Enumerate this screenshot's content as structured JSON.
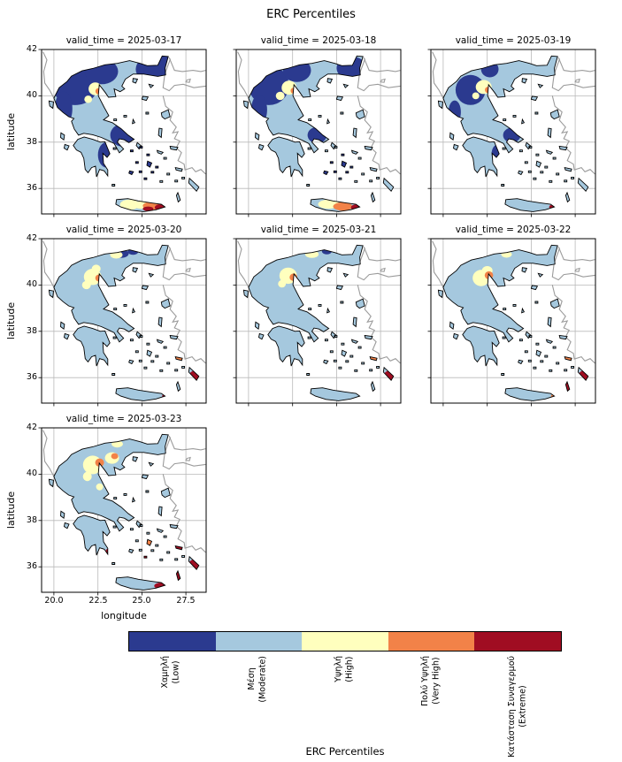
{
  "figure": {
    "title": "ERC Percentiles"
  },
  "axes": {
    "xlabel": "longitude",
    "ylabel": "latitude"
  },
  "colorbar": {
    "title": "ERC Percentiles"
  },
  "chart_data": {
    "type": "heatmap",
    "title": "ERC Percentiles",
    "facet_variable": "valid_time",
    "xlabel": "longitude",
    "ylabel": "latitude",
    "xlim": [
      19.3,
      28.65
    ],
    "ylim": [
      34.9,
      42.0
    ],
    "xticks": [
      "20.0",
      "22.5",
      "25.0",
      "27.5"
    ],
    "xtick_values": [
      20.0,
      22.5,
      25.0,
      27.5
    ],
    "ytick_values": [
      36,
      38,
      40,
      42
    ],
    "grid": true,
    "region": "Greece",
    "legend": {
      "title": "ERC Percentiles",
      "position": "bottom",
      "entries": [
        {
          "key": "low",
          "label_el": "Χαμηλή",
          "label_en": "(Low)",
          "color": "#2b3a8f"
        },
        {
          "key": "moderate",
          "label_el": "Μέση",
          "label_en": "(Moderate)",
          "color": "#a5c8de"
        },
        {
          "key": "high",
          "label_el": "Υψηλή",
          "label_en": "(High)",
          "color": "#ffffbe"
        },
        {
          "key": "very_high",
          "label_el": "Πολύ Υψηλή",
          "label_en": "(Very High)",
          "color": "#f28248"
        },
        {
          "key": "extreme",
          "label_el": "Κατάσταση Συναγερμού",
          "label_en": "(Extreme)",
          "color": "#a00d22"
        }
      ]
    },
    "base_category": "moderate",
    "panels": [
      {
        "title": "valid_time = 2025-03-17",
        "valid_time": "2025-03-17",
        "patches": {
          "low": [
            [
              21.2,
              40.55,
              1.35,
              0.95
            ],
            [
              22.7,
              41.05,
              0.95,
              0.55
            ],
            [
              25.7,
              41.15,
              1.05,
              0.6
            ],
            [
              20.55,
              39.45,
              0.5,
              0.75
            ],
            [
              23.95,
              38.3,
              0.75,
              0.5
            ],
            [
              23.0,
              37.45,
              0.5,
              0.55
            ],
            [
              26.3,
              41.45,
              0.45,
              0.45
            ],
            [
              25.0,
              37.0,
              1.2,
              0.8
            ]
          ],
          "high": [
            [
              22.35,
              40.3,
              0.38,
              0.28
            ],
            [
              21.95,
              39.85,
              0.22,
              0.16
            ],
            [
              24.3,
              35.3,
              0.55,
              0.22
            ],
            [
              24.95,
              35.28,
              0.45,
              0.16
            ]
          ],
          "very_high": [
            [
              22.52,
              40.2,
              0.16,
              0.13
            ],
            [
              25.55,
              35.25,
              0.5,
              0.17
            ]
          ],
          "extreme": [
            [
              26.05,
              35.18,
              0.32,
              0.14
            ],
            [
              25.35,
              35.12,
              0.3,
              0.1
            ]
          ]
        }
      },
      {
        "title": "valid_time = 2025-03-18",
        "valid_time": "2025-03-18",
        "patches": {
          "low": [
            [
              21.15,
              40.45,
              1.15,
              0.85
            ],
            [
              22.75,
              41.1,
              0.8,
              0.5
            ],
            [
              25.85,
              41.2,
              0.85,
              0.5
            ],
            [
              20.6,
              39.4,
              0.45,
              0.65
            ],
            [
              23.9,
              38.3,
              0.55,
              0.35
            ],
            [
              25.0,
              37.0,
              0.9,
              0.6
            ]
          ],
          "high": [
            [
              22.3,
              40.35,
              0.42,
              0.3
            ],
            [
              21.8,
              40.0,
              0.25,
              0.18
            ],
            [
              24.55,
              35.32,
              0.6,
              0.2
            ]
          ],
          "very_high": [
            [
              22.55,
              40.22,
              0.16,
              0.13
            ],
            [
              25.35,
              35.22,
              0.55,
              0.18
            ]
          ],
          "extreme": [
            [
              26.1,
              35.18,
              0.28,
              0.13
            ]
          ]
        }
      },
      {
        "title": "valid_time = 2025-03-19",
        "valid_time": "2025-03-19",
        "patches": {
          "low": [
            [
              21.55,
              40.25,
              0.85,
              0.65
            ],
            [
              22.65,
              41.15,
              0.5,
              0.35
            ],
            [
              23.9,
              38.3,
              0.5,
              0.32
            ],
            [
              20.65,
              39.3,
              0.35,
              0.5
            ],
            [
              23.1,
              37.5,
              0.35,
              0.4
            ]
          ],
          "high": [
            [
              22.3,
              40.38,
              0.45,
              0.3
            ],
            [
              21.85,
              40.0,
              0.2,
              0.15
            ]
          ],
          "very_high": [
            [
              22.55,
              40.25,
              0.18,
              0.14
            ]
          ],
          "extreme": [
            [
              26.2,
              35.2,
              0.18,
              0.1
            ]
          ]
        }
      },
      {
        "title": "valid_time = 2025-03-20",
        "valid_time": "2025-03-20",
        "patches": {
          "low": [
            [
              23.8,
              41.35,
              0.45,
              0.18
            ],
            [
              24.5,
              41.45,
              0.3,
              0.15
            ]
          ],
          "high": [
            [
              22.2,
              40.35,
              0.5,
              0.35
            ],
            [
              21.85,
              40.0,
              0.25,
              0.18
            ],
            [
              23.55,
              41.3,
              0.35,
              0.16
            ],
            [
              22.4,
              40.7,
              0.25,
              0.18
            ]
          ],
          "very_high": [
            [
              22.55,
              40.3,
              0.2,
              0.15
            ],
            [
              27.1,
              36.82,
              0.22,
              0.12
            ]
          ],
          "extreme": [
            [
              28.0,
              36.1,
              0.3,
              0.2
            ],
            [
              26.3,
              35.2,
              0.15,
              0.09
            ]
          ]
        }
      },
      {
        "title": "valid_time = 2025-03-21",
        "valid_time": "2025-03-21",
        "patches": {
          "low": [
            [
              24.45,
              41.45,
              0.28,
              0.13
            ]
          ],
          "high": [
            [
              22.25,
              40.4,
              0.5,
              0.35
            ],
            [
              23.6,
              41.33,
              0.38,
              0.16
            ],
            [
              21.9,
              40.05,
              0.22,
              0.16
            ]
          ],
          "very_high": [
            [
              22.55,
              40.33,
              0.22,
              0.16
            ],
            [
              27.1,
              36.8,
              0.2,
              0.11
            ]
          ],
          "extreme": [
            [
              28.0,
              36.1,
              0.3,
              0.2
            ]
          ]
        }
      },
      {
        "title": "valid_time = 2025-03-22",
        "valid_time": "2025-03-22",
        "patches": {
          "high": [
            [
              22.15,
              40.3,
              0.48,
              0.35
            ],
            [
              22.5,
              40.62,
              0.3,
              0.2
            ],
            [
              23.6,
              41.32,
              0.3,
              0.14
            ]
          ],
          "very_high": [
            [
              22.6,
              40.42,
              0.24,
              0.17
            ],
            [
              27.1,
              36.8,
              0.22,
              0.12
            ],
            [
              26.3,
              35.2,
              0.18,
              0.1
            ]
          ],
          "extreme": [
            [
              28.0,
              36.08,
              0.32,
              0.22
            ],
            [
              27.07,
              35.62,
              0.14,
              0.22
            ]
          ]
        }
      },
      {
        "title": "valid_time = 2025-03-23",
        "valid_time": "2025-03-23",
        "patches": {
          "high": [
            [
              22.2,
              40.4,
              0.55,
              0.4
            ],
            [
              23.3,
              40.7,
              0.4,
              0.25
            ],
            [
              21.9,
              39.9,
              0.25,
              0.2
            ],
            [
              23.6,
              41.3,
              0.32,
              0.15
            ],
            [
              22.6,
              39.45,
              0.2,
              0.15
            ]
          ],
          "very_high": [
            [
              22.6,
              40.5,
              0.25,
              0.18
            ],
            [
              23.45,
              40.78,
              0.2,
              0.13
            ],
            [
              25.45,
              37.05,
              0.22,
              0.12
            ]
          ],
          "extreme": [
            [
              28.0,
              36.08,
              0.35,
              0.25
            ],
            [
              27.07,
              35.6,
              0.16,
              0.25
            ],
            [
              26.1,
              35.18,
              0.4,
              0.14
            ],
            [
              27.1,
              36.85,
              0.25,
              0.13
            ],
            [
              26.9,
              36.55,
              0.2,
              0.12
            ],
            [
              25.2,
              36.4,
              0.2,
              0.12
            ],
            [
              23.05,
              36.6,
              0.12,
              0.18
            ]
          ]
        }
      }
    ]
  }
}
